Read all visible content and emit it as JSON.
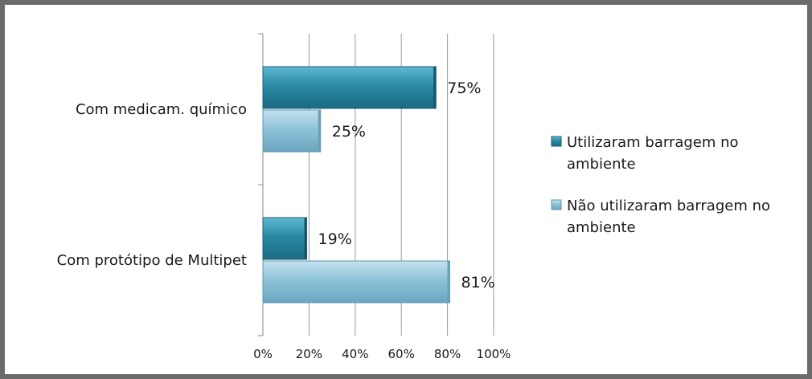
{
  "chart_data": {
    "type": "bar",
    "orientation": "horizontal",
    "categories": [
      "Com medicam. químico",
      "Com protótipo de Multipet"
    ],
    "series": [
      {
        "name": "Utilizaram barragem no ambiente",
        "values": [
          75,
          19
        ],
        "color": "#2a8aa6"
      },
      {
        "name": "Não utilizaram barragem no ambiente",
        "values": [
          25,
          81
        ],
        "color": "#8ec3d9"
      }
    ],
    "data_labels": [
      [
        "75%",
        "19%"
      ],
      [
        "25%",
        "81%"
      ]
    ],
    "x_ticks": [
      "0%",
      "20%",
      "40%",
      "60%",
      "80%",
      "100%"
    ],
    "xlim": [
      0,
      100
    ],
    "grid": true,
    "legend": {
      "placement": "right",
      "entries": [
        {
          "lines": [
            "Utilizaram barragem no",
            "ambiente"
          ]
        },
        {
          "lines": [
            "Não utilizaram barragem no",
            "ambiente"
          ]
        }
      ]
    }
  }
}
